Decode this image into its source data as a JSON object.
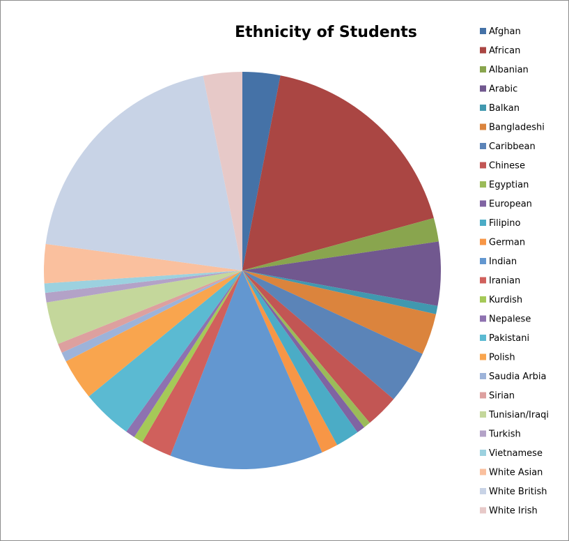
{
  "chart_data": {
    "type": "pie",
    "title": "Ethnicity of Students",
    "legend_position": "right",
    "categories": [
      "Afghan",
      "African",
      "Albanian",
      "Arabic",
      "Balkan",
      "Bangladeshi",
      "Caribbean",
      "Chinese",
      "Egyptian",
      "European",
      "Filipino",
      "German",
      "Indian",
      "Iranian",
      "Kurdish",
      "Nepalese",
      "Pakistani",
      "Polish",
      "Saudia Arbia",
      "Sirian",
      "Tunisian/Iraqi",
      "Turkish",
      "Vietnamese",
      "White Asian",
      "White British",
      "White Irish"
    ],
    "values": [
      3.2,
      18.4,
      2.0,
      5.4,
      0.7,
      3.5,
      4.5,
      2.8,
      0.6,
      0.7,
      2.0,
      1.4,
      13.0,
      2.6,
      0.8,
      0.8,
      4.3,
      3.5,
      0.8,
      0.8,
      3.6,
      0.8,
      0.8,
      3.3,
      20.5,
      3.3
    ],
    "colors": [
      "#4572A7",
      "#AA4643",
      "#89A54E",
      "#71588F",
      "#4198AF",
      "#DB843D",
      "#5B84B8",
      "#C25654",
      "#9BBB59",
      "#8064A2",
      "#4BACC6",
      "#F79646",
      "#6397D0",
      "#D0605C",
      "#A5C958",
      "#8E72B0",
      "#5BBAD2",
      "#F9A54E",
      "#9DB3D9",
      "#DDA09F",
      "#C4D79B",
      "#B3A2C7",
      "#9CD1DF",
      "#FAC09E",
      "#C8D3E6",
      "#E7C9C8"
    ]
  }
}
